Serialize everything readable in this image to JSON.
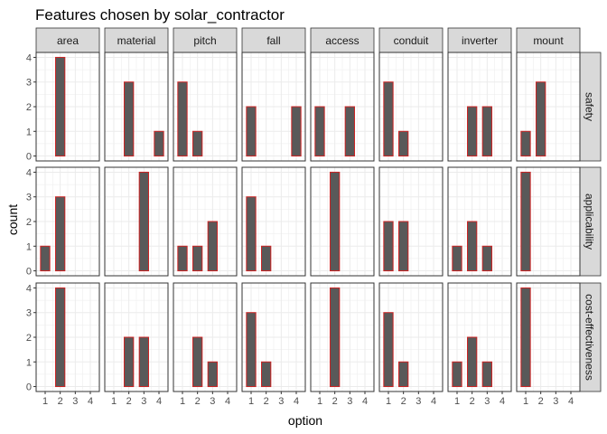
{
  "chart_data": {
    "type": "bar",
    "title": "Features chosen by solar_contractor",
    "xlabel": "option",
    "ylabel": "count",
    "x_ticks": [
      "1",
      "2",
      "3",
      "4"
    ],
    "y_ticks": [
      "0",
      "1",
      "2",
      "3",
      "4"
    ],
    "xlim": [
      0.4,
      4.6
    ],
    "ylim": [
      0,
      4
    ],
    "grid": true,
    "columns": [
      "area",
      "material",
      "pitch",
      "fall",
      "access",
      "conduit",
      "inverter",
      "mount"
    ],
    "rows": [
      "safety",
      "applicability",
      "cost-effectiveness"
    ],
    "colors": {
      "bar_fill": "#595959",
      "bar_stroke": "#cc2222",
      "strip_fill": "#d9d9d9",
      "grid": "#ebebeb",
      "panel_border": "#333333"
    },
    "panels": [
      {
        "row": "safety",
        "column": "area",
        "bars": [
          {
            "x": 2,
            "y": 4
          }
        ]
      },
      {
        "row": "safety",
        "column": "material",
        "bars": [
          {
            "x": 2,
            "y": 3
          },
          {
            "x": 4,
            "y": 1
          }
        ]
      },
      {
        "row": "safety",
        "column": "pitch",
        "bars": [
          {
            "x": 1,
            "y": 3
          },
          {
            "x": 2,
            "y": 1
          }
        ]
      },
      {
        "row": "safety",
        "column": "fall",
        "bars": [
          {
            "x": 1,
            "y": 2
          },
          {
            "x": 4,
            "y": 2
          }
        ]
      },
      {
        "row": "safety",
        "column": "access",
        "bars": [
          {
            "x": 1,
            "y": 2
          },
          {
            "x": 3,
            "y": 2
          }
        ]
      },
      {
        "row": "safety",
        "column": "conduit",
        "bars": [
          {
            "x": 1,
            "y": 3
          },
          {
            "x": 2,
            "y": 1
          }
        ]
      },
      {
        "row": "safety",
        "column": "inverter",
        "bars": [
          {
            "x": 2,
            "y": 2
          },
          {
            "x": 3,
            "y": 2
          }
        ]
      },
      {
        "row": "safety",
        "column": "mount",
        "bars": [
          {
            "x": 1,
            "y": 1
          },
          {
            "x": 2,
            "y": 3
          }
        ]
      },
      {
        "row": "applicability",
        "column": "area",
        "bars": [
          {
            "x": 1,
            "y": 1
          },
          {
            "x": 2,
            "y": 3
          }
        ]
      },
      {
        "row": "applicability",
        "column": "material",
        "bars": [
          {
            "x": 3,
            "y": 4
          }
        ]
      },
      {
        "row": "applicability",
        "column": "pitch",
        "bars": [
          {
            "x": 1,
            "y": 1
          },
          {
            "x": 2,
            "y": 1
          },
          {
            "x": 3,
            "y": 2
          }
        ]
      },
      {
        "row": "applicability",
        "column": "fall",
        "bars": [
          {
            "x": 1,
            "y": 3
          },
          {
            "x": 2,
            "y": 1
          }
        ]
      },
      {
        "row": "applicability",
        "column": "access",
        "bars": [
          {
            "x": 2,
            "y": 4
          }
        ]
      },
      {
        "row": "applicability",
        "column": "conduit",
        "bars": [
          {
            "x": 1,
            "y": 2
          },
          {
            "x": 2,
            "y": 2
          }
        ]
      },
      {
        "row": "applicability",
        "column": "inverter",
        "bars": [
          {
            "x": 1,
            "y": 1
          },
          {
            "x": 2,
            "y": 2
          },
          {
            "x": 3,
            "y": 1
          }
        ]
      },
      {
        "row": "applicability",
        "column": "mount",
        "bars": [
          {
            "x": 1,
            "y": 4
          }
        ]
      },
      {
        "row": "cost-effectiveness",
        "column": "area",
        "bars": [
          {
            "x": 2,
            "y": 4
          }
        ]
      },
      {
        "row": "cost-effectiveness",
        "column": "material",
        "bars": [
          {
            "x": 2,
            "y": 2
          },
          {
            "x": 3,
            "y": 2
          }
        ]
      },
      {
        "row": "cost-effectiveness",
        "column": "pitch",
        "bars": [
          {
            "x": 2,
            "y": 2
          },
          {
            "x": 3,
            "y": 1
          }
        ]
      },
      {
        "row": "cost-effectiveness",
        "column": "fall",
        "bars": [
          {
            "x": 1,
            "y": 3
          },
          {
            "x": 2,
            "y": 1
          }
        ]
      },
      {
        "row": "cost-effectiveness",
        "column": "access",
        "bars": [
          {
            "x": 2,
            "y": 4
          }
        ]
      },
      {
        "row": "cost-effectiveness",
        "column": "conduit",
        "bars": [
          {
            "x": 1,
            "y": 3
          },
          {
            "x": 2,
            "y": 1
          }
        ]
      },
      {
        "row": "cost-effectiveness",
        "column": "inverter",
        "bars": [
          {
            "x": 1,
            "y": 1
          },
          {
            "x": 2,
            "y": 2
          },
          {
            "x": 3,
            "y": 1
          }
        ]
      },
      {
        "row": "cost-effectiveness",
        "column": "mount",
        "bars": [
          {
            "x": 1,
            "y": 4
          }
        ]
      }
    ]
  }
}
